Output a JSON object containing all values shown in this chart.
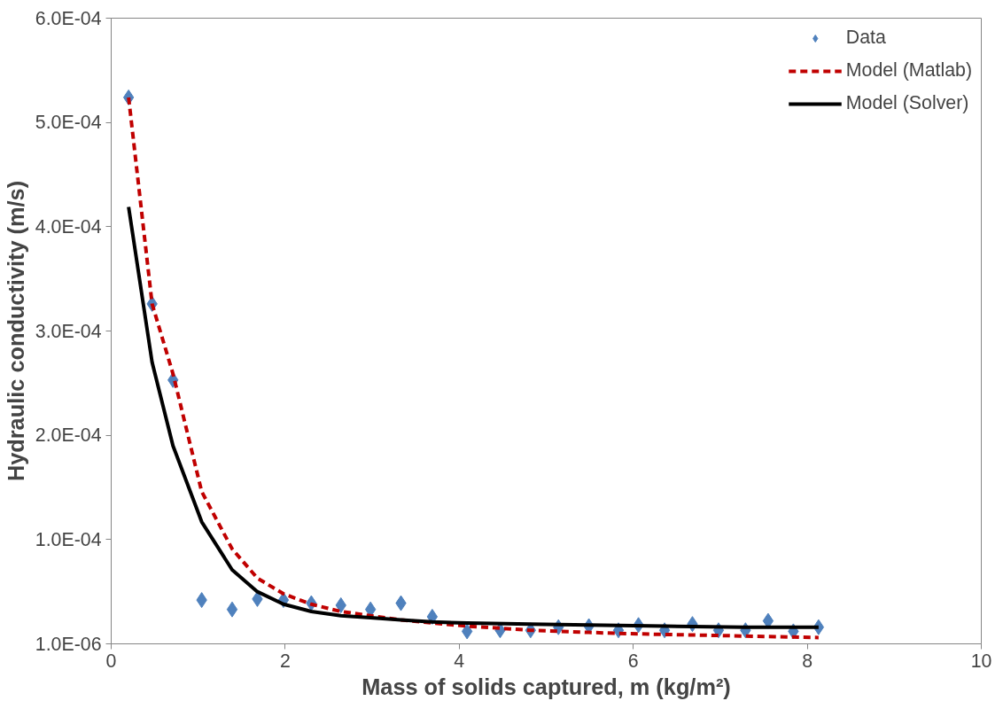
{
  "chart_data": {
    "type": "line",
    "xlabel": "Mass of solids captured, m (kg/m²)",
    "ylabel": "Hydraulic conductivity (m/s)",
    "xlim": [
      0,
      10
    ],
    "xticks": [
      0,
      2,
      4,
      6,
      8,
      10
    ],
    "ylim": [
      1e-06,
      0.000601
    ],
    "yticks": [
      {
        "value": 1e-06,
        "label": "1.0E-06"
      },
      {
        "value": 0.000101,
        "label": "1.0E-04"
      },
      {
        "value": 0.000201,
        "label": "2.0E-04"
      },
      {
        "value": 0.000301,
        "label": "3.0E-04"
      },
      {
        "value": 0.000401,
        "label": "4.0E-04"
      },
      {
        "value": 0.000501,
        "label": "5.0E-04"
      },
      {
        "value": 0.000601,
        "label": "6.0E-04"
      }
    ],
    "grid": false,
    "legend": "top right",
    "series": [
      {
        "name": "Data",
        "type": "scatter",
        "marker": "diamond",
        "color": "#4f81bd",
        "x": [
          0.2,
          0.47,
          0.71,
          1.04,
          1.39,
          1.68,
          1.98,
          2.3,
          2.64,
          2.98,
          3.33,
          3.69,
          4.09,
          4.47,
          4.82,
          5.14,
          5.49,
          5.83,
          6.06,
          6.36,
          6.68,
          6.98,
          7.29,
          7.55,
          7.84,
          8.13
        ],
        "values": [
          0.000525,
          0.000327,
          0.000254,
          4.3e-05,
          3.4e-05,
          4.4e-05,
          4.3e-05,
          4e-05,
          3.8e-05,
          3.4e-05,
          4e-05,
          2.7e-05,
          1.3e-05,
          1.4e-05,
          1.4e-05,
          1.7e-05,
          1.8e-05,
          1.4e-05,
          1.9e-05,
          1.4e-05,
          2e-05,
          1.4e-05,
          1.4e-05,
          2.3e-05,
          1.3e-05,
          1.7e-05
        ]
      },
      {
        "name": "Model (Matlab)",
        "line_style": "dashed",
        "color": "#c00000",
        "x": [
          0.2,
          0.47,
          0.71,
          1.04,
          1.39,
          1.68,
          1.98,
          2.3,
          2.64,
          2.98,
          3.33,
          3.69,
          4.09,
          4.47,
          4.82,
          5.14,
          5.49,
          5.83,
          6.36,
          6.98,
          7.55,
          8.13
        ],
        "values": [
          0.000525,
          0.000327,
          0.00026,
          0.000147,
          9.2e-05,
          6.4e-05,
          4.9e-05,
          3.9e-05,
          3.2e-05,
          2.8e-05,
          2.4e-05,
          2.1e-05,
          1.8e-05,
          1.6e-05,
          1.4e-05,
          1.3e-05,
          1.2e-05,
          1.1e-05,
          1e-05,
          9e-06,
          8e-06,
          7e-06
        ]
      },
      {
        "name": "Model (Solver)",
        "line_style": "solid",
        "color": "#000000",
        "x": [
          0.2,
          0.47,
          0.71,
          1.04,
          1.39,
          1.68,
          1.98,
          2.3,
          2.64,
          2.98,
          3.33,
          3.69,
          4.09,
          4.82,
          5.49,
          6.36,
          7.29,
          8.13
        ],
        "values": [
          0.00042,
          0.000271,
          0.000191,
          0.000118,
          7.2e-05,
          5.1e-05,
          3.9e-05,
          3.2e-05,
          2.8e-05,
          2.6e-05,
          2.4e-05,
          2.2e-05,
          2.1e-05,
          2e-05,
          1.9e-05,
          1.8e-05,
          1.7e-05,
          1.7e-05
        ]
      }
    ]
  }
}
